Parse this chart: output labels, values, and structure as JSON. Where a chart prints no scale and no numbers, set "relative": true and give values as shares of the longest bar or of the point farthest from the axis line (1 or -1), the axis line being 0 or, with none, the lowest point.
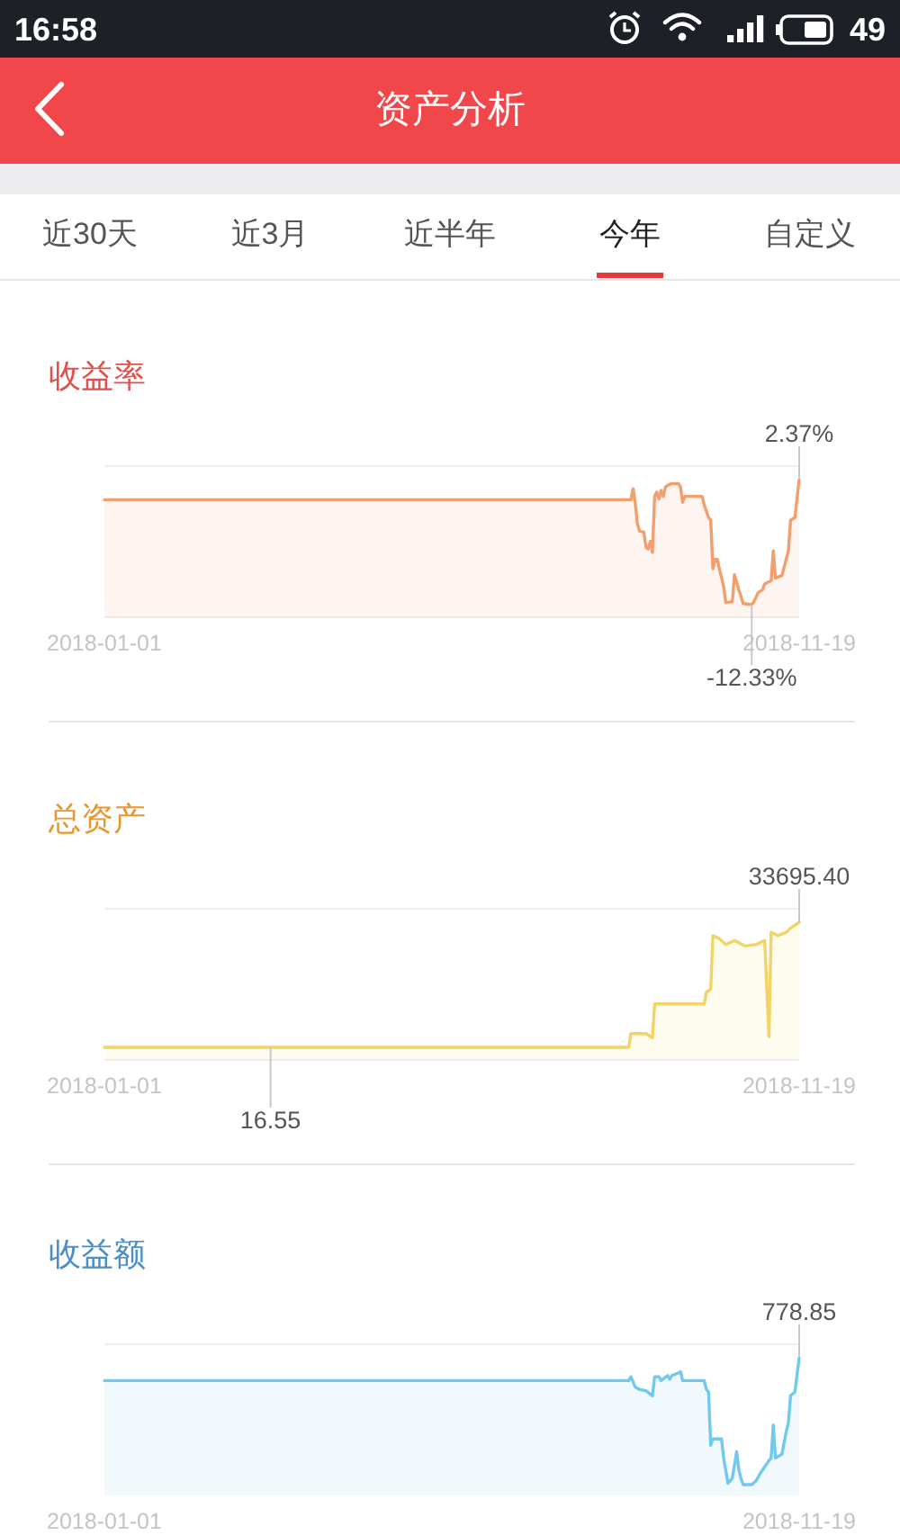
{
  "chart_data": [
    {
      "type": "other",
      "title": "资产分析",
      "annotations": [
        "16:58",
        "49",
        "近30天",
        "近3月",
        "近半年",
        "今年",
        "自定义"
      ]
    },
    {
      "type": "area",
      "title": "收益率",
      "color": "#f29f6e",
      "xlim": [
        "2018-01-01",
        "2018-11-19"
      ],
      "xticks": [
        {
          "value": "2018-01-01",
          "label": "2018-01-01"
        },
        {
          "value": "2018-11-19",
          "label": "2018-11-19"
        }
      ],
      "tick_labels": "x",
      "x": [
        "2018-01-01",
        "2018-09-02",
        "2018-09-03",
        "2018-09-04",
        "2018-09-05",
        "2018-09-06",
        "2018-09-08",
        "2018-09-09",
        "2018-09-10",
        "2018-09-11",
        "2018-09-12",
        "2018-09-13",
        "2018-09-14",
        "2018-09-15",
        "2018-09-16",
        "2018-09-17",
        "2018-09-18",
        "2018-09-19",
        "2018-09-21",
        "2018-09-24",
        "2018-09-25",
        "2018-09-26",
        "2018-09-27",
        "2018-10-05",
        "2018-10-06",
        "2018-10-08",
        "2018-10-09",
        "2018-10-10",
        "2018-10-11",
        "2018-10-12",
        "2018-10-13",
        "2018-10-15",
        "2018-10-16",
        "2018-10-18",
        "2018-10-19",
        "2018-10-20",
        "2018-10-22",
        "2018-10-23",
        "2018-10-24",
        "2018-10-28",
        "2018-10-29",
        "2018-10-31",
        "2018-11-02",
        "2018-11-03",
        "2018-11-06",
        "2018-11-07",
        "2018-11-08",
        "2018-11-11",
        "2018-11-14",
        "2018-11-15",
        "2018-11-17",
        "2018-11-19"
      ],
      "values": [
        0,
        0,
        1.3,
        -0.3,
        -2.8,
        -3.7,
        -3.8,
        -5.6,
        -5.8,
        -4.9,
        -6.2,
        0.4,
        0.9,
        0.1,
        1.1,
        0.4,
        1.5,
        1.7,
        1.9,
        1.9,
        1.5,
        -0.3,
        0.4,
        0.4,
        -0.6,
        -2.1,
        -2.4,
        -8.1,
        -7.0,
        -7.0,
        -8.1,
        -10.2,
        -12.1,
        -12.0,
        -12.0,
        -8.8,
        -10.6,
        -11.3,
        -12.2,
        -12.33,
        -12.0,
        -10.9,
        -10.6,
        -9.9,
        -9.5,
        -6.0,
        -9.2,
        -8.9,
        -6.0,
        -2.4,
        -2.1,
        2.37
      ],
      "value_labels": [
        null,
        null,
        null,
        null,
        null,
        null,
        null,
        null,
        null,
        null,
        null,
        null,
        null,
        null,
        null,
        null,
        null,
        null,
        null,
        null,
        null,
        null,
        null,
        null,
        null,
        null,
        null,
        null,
        null,
        null,
        null,
        null,
        null,
        null,
        null,
        null,
        null,
        null,
        null,
        "-12.33%",
        null,
        null,
        null,
        null,
        null,
        null,
        null,
        null,
        null,
        null,
        null,
        "2.37%"
      ]
    },
    {
      "type": "area",
      "title": "总资产",
      "color": "#f2d466",
      "xlim": [
        "2018-01-01",
        "2018-11-19"
      ],
      "xticks": [
        {
          "value": "2018-01-01",
          "label": "2018-01-01"
        },
        {
          "value": "2018-11-19",
          "label": "2018-11-19"
        }
      ],
      "tick_labels": "x",
      "x": [
        "2018-01-01",
        "2018-03-19",
        "2018-09-01",
        "2018-09-02",
        "2018-09-09",
        "2018-09-12",
        "2018-09-13",
        "2018-10-06",
        "2018-10-07",
        "2018-10-09",
        "2018-10-10",
        "2018-10-13",
        "2018-10-16",
        "2018-10-20",
        "2018-10-25",
        "2018-10-30",
        "2018-11-03",
        "2018-11-05",
        "2018-11-06",
        "2018-11-09",
        "2018-11-13",
        "2018-11-15",
        "2018-11-19"
      ],
      "values": [
        16.55,
        16.55,
        16.55,
        3700,
        3700,
        2600,
        11700,
        11700,
        14900,
        15700,
        30100,
        29300,
        27700,
        28800,
        27300,
        27700,
        28800,
        2900,
        31000,
        30100,
        31000,
        32100,
        33695.4
      ],
      "value_labels": [
        null,
        "16.55",
        null,
        null,
        null,
        null,
        null,
        null,
        null,
        null,
        null,
        null,
        null,
        null,
        null,
        null,
        null,
        null,
        null,
        null,
        null,
        null,
        "33695.40"
      ]
    },
    {
      "type": "area",
      "title": "收益额",
      "color": "#72c9ee",
      "relative": true,
      "xlim": [
        "2018-01-01",
        "2018-11-19"
      ],
      "xticks": [
        {
          "value": "2018-01-01",
          "label": "2018-01-01"
        },
        {
          "value": "2018-11-19",
          "label": "2018-11-19"
        }
      ],
      "tick_labels": "x",
      "x": [
        "2018-01-01",
        "2018-09-01",
        "2018-09-02",
        "2018-09-04",
        "2018-09-06",
        "2018-09-09",
        "2018-09-12",
        "2018-09-13",
        "2018-09-15",
        "2018-09-16",
        "2018-09-19",
        "2018-09-20",
        "2018-09-21",
        "2018-09-24",
        "2018-09-25",
        "2018-09-26",
        "2018-10-06",
        "2018-10-07",
        "2018-10-08",
        "2018-10-09",
        "2018-10-10",
        "2018-10-14",
        "2018-10-15",
        "2018-10-17",
        "2018-10-19",
        "2018-10-21",
        "2018-10-22",
        "2018-10-23",
        "2018-10-24",
        "2018-10-28",
        "2018-10-30",
        "2018-11-01",
        "2018-11-03",
        "2018-11-05",
        "2018-11-06",
        "2018-11-07",
        "2018-11-08",
        "2018-11-11",
        "2018-11-13",
        "2018-11-14",
        "2018-11-15",
        "2018-11-17",
        "2018-11-19"
      ],
      "values": [
        0.82,
        0.82,
        0.85,
        0.77,
        0.75,
        0.74,
        0.7,
        0.85,
        0.85,
        0.82,
        0.86,
        0.83,
        0.86,
        0.88,
        0.89,
        0.82,
        0.82,
        0.75,
        0.73,
        0.31,
        0.36,
        0.36,
        0.21,
        0.01,
        0.05,
        0.26,
        0.12,
        0.05,
        0,
        0,
        0.03,
        0.09,
        0.14,
        0.19,
        0.21,
        0.47,
        0.21,
        0.24,
        0.42,
        0.49,
        0.7,
        0.73,
        1
      ],
      "annotations": [
        {
          "text": "778.85",
          "x": "2018-11-19"
        }
      ]
    }
  ]
}
